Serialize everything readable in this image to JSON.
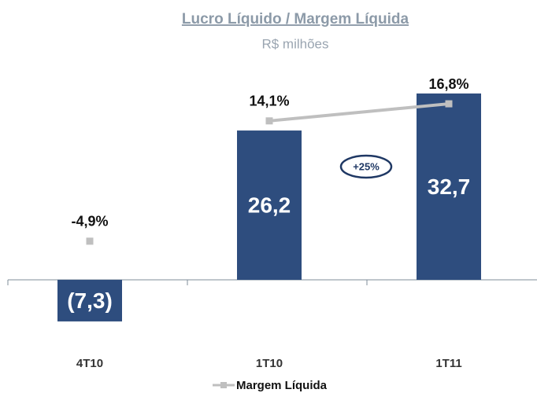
{
  "chart_data": {
    "type": "bar",
    "title": "Lucro Líquido / Margem Líquida",
    "subtitle": "R$ milhões",
    "categories": [
      "4T10",
      "1T10",
      "1T11"
    ],
    "series": [
      {
        "type": "bar",
        "color": "#2e4d7e",
        "values": [
          -7.3,
          26.2,
          32.7
        ],
        "value_labels": [
          "(7,3)",
          "26,2",
          "32,7"
        ]
      },
      {
        "type": "line",
        "name": "Margem Líquida",
        "axis": "y2",
        "color": "#bfbfbf",
        "values": [
          -4.9,
          14.1,
          16.8
        ],
        "value_labels": [
          "-4,9%",
          "14,1%",
          "16,8%"
        ]
      }
    ],
    "annotations": [
      "+25%"
    ],
    "ylim": [
      -10,
      40
    ],
    "y2lim": [
      -20,
      25
    ],
    "legend": "bottom"
  }
}
